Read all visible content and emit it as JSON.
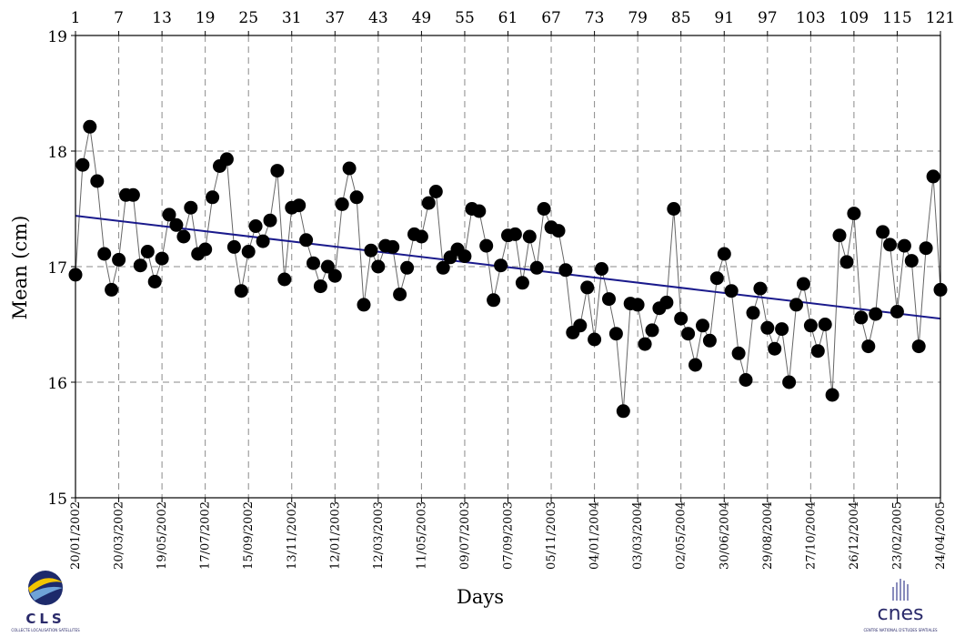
{
  "chart_data": {
    "type": "scatter",
    "title": "",
    "xlabel": "Days",
    "ylabel": "Mean (cm)",
    "ylim": [
      15,
      19
    ],
    "yticks": [
      15,
      16,
      17,
      18,
      19
    ],
    "xlim": [
      1,
      121
    ],
    "xticks_top": [
      1,
      7,
      13,
      19,
      25,
      31,
      37,
      43,
      49,
      55,
      61,
      67,
      73,
      79,
      85,
      91,
      97,
      103,
      109,
      115,
      121
    ],
    "date_ticks": [
      {
        "cycle": 1,
        "label": "20/01/2002"
      },
      {
        "cycle": 7,
        "label": "20/03/2002"
      },
      {
        "cycle": 13,
        "label": "19/05/2002"
      },
      {
        "cycle": 19,
        "label": "17/07/2002"
      },
      {
        "cycle": 25,
        "label": "15/09/2002"
      },
      {
        "cycle": 31,
        "label": "13/11/2002"
      },
      {
        "cycle": 37,
        "label": "12/01/2003"
      },
      {
        "cycle": 43,
        "label": "12/03/2003"
      },
      {
        "cycle": 49,
        "label": "11/05/2003"
      },
      {
        "cycle": 55,
        "label": "09/07/2003"
      },
      {
        "cycle": 61,
        "label": "07/09/2003"
      },
      {
        "cycle": 67,
        "label": "05/11/2003"
      },
      {
        "cycle": 73,
        "label": "04/01/2004"
      },
      {
        "cycle": 79,
        "label": "03/03/2004"
      },
      {
        "cycle": 85,
        "label": "02/05/2004"
      },
      {
        "cycle": 91,
        "label": "30/06/2004"
      },
      {
        "cycle": 97,
        "label": "29/08/2004"
      },
      {
        "cycle": 103,
        "label": "27/10/2004"
      },
      {
        "cycle": 109,
        "label": "26/12/2004"
      },
      {
        "cycle": 115,
        "label": "23/02/2005"
      },
      {
        "cycle": 121,
        "label": "24/04/2005"
      }
    ],
    "grid": true,
    "series": [
      {
        "color": "#000000",
        "marker": "filled-circle",
        "connected": true,
        "x": [
          1,
          2,
          3,
          4,
          5,
          6,
          7,
          8,
          9,
          10,
          11,
          12,
          13,
          14,
          15,
          16,
          17,
          18,
          19,
          20,
          21,
          22,
          23,
          24,
          25,
          26,
          27,
          28,
          29,
          30,
          31,
          32,
          33,
          34,
          35,
          36,
          37,
          38,
          39,
          40,
          41,
          42,
          43,
          44,
          45,
          46,
          47,
          48,
          49,
          50,
          51,
          52,
          53,
          54,
          55,
          56,
          57,
          58,
          59,
          60,
          61,
          62,
          63,
          64,
          65,
          66,
          67,
          68,
          69,
          70,
          71,
          72,
          73,
          74,
          75,
          76,
          77,
          78,
          79,
          80,
          81,
          82,
          83,
          84,
          85,
          86,
          87,
          88,
          89,
          90,
          91,
          92,
          93,
          94,
          95,
          96,
          97,
          98,
          99,
          100,
          101,
          102,
          103,
          104,
          105,
          106,
          107,
          108,
          109,
          110,
          111,
          112,
          113,
          114,
          115,
          116,
          117,
          118,
          119,
          120,
          121
        ],
        "y": [
          16.93,
          17.88,
          18.21,
          17.74,
          17.11,
          16.8,
          17.06,
          17.62,
          17.62,
          17.01,
          17.13,
          16.87,
          17.07,
          17.45,
          17.36,
          17.26,
          17.51,
          17.11,
          17.15,
          17.6,
          17.87,
          17.93,
          17.17,
          16.79,
          17.13,
          17.35,
          17.22,
          17.4,
          17.83,
          16.89,
          17.51,
          17.53,
          17.23,
          17.03,
          16.83,
          17.0,
          16.92,
          17.54,
          17.85,
          17.6,
          16.67,
          17.14,
          17.0,
          17.18,
          17.17,
          16.76,
          16.99,
          17.28,
          17.26,
          17.55,
          17.65,
          16.99,
          17.08,
          17.15,
          17.09,
          17.5,
          17.48,
          17.18,
          16.71,
          17.01,
          17.27,
          17.28,
          16.86,
          17.26,
          16.99,
          17.5,
          17.34,
          17.31,
          16.97,
          16.43,
          16.49,
          16.82,
          16.37,
          16.98,
          16.72,
          16.42,
          15.75,
          16.68,
          16.67,
          16.33,
          16.45,
          16.64,
          16.69,
          17.5,
          16.55,
          16.42,
          16.15,
          16.49,
          16.36,
          16.9,
          17.11,
          16.79,
          16.25,
          16.02,
          16.6,
          16.81,
          16.47,
          16.29,
          16.46,
          16.0,
          16.67,
          16.85,
          16.49,
          16.27,
          16.5,
          15.89,
          17.27,
          17.04,
          17.46,
          16.56,
          16.31,
          16.59,
          17.3,
          17.19,
          16.61,
          17.18,
          17.05,
          16.31,
          17.16,
          17.78,
          16.8
        ]
      }
    ],
    "trend_line": {
      "color": "#1a1a8c",
      "x": [
        1,
        121
      ],
      "y": [
        17.44,
        16.55
      ]
    }
  },
  "logos": {
    "left": {
      "name": "CLS",
      "caption": "COLLECTE LOCALISATION SATELLITES"
    },
    "right": {
      "name": "cnes",
      "caption": "CENTRE NATIONAL D'ETUDES SPATIALES"
    }
  }
}
